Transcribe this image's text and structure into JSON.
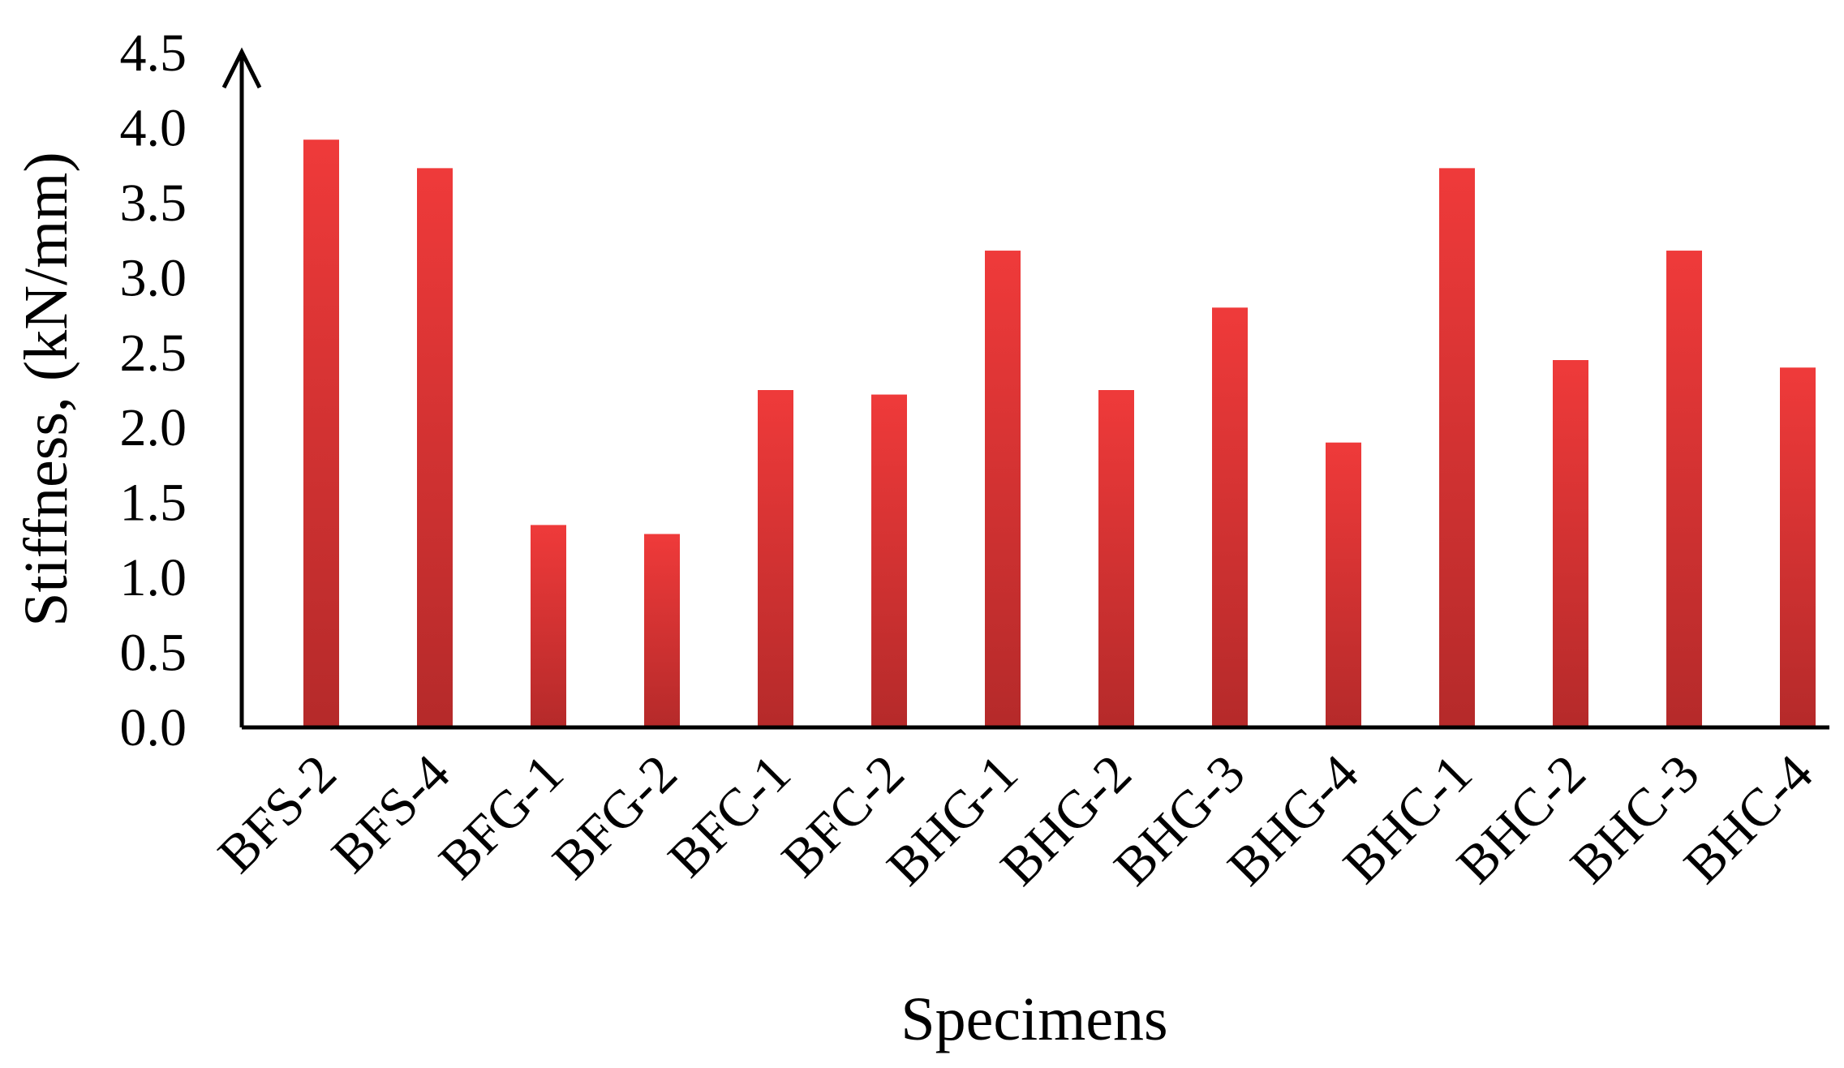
{
  "chart_data": {
    "type": "bar",
    "title": "",
    "xlabel": "Specimens",
    "ylabel": "Stiffness,  (kN/mm)",
    "categories": [
      "BFS-2",
      "BFS-4",
      "BFG-1",
      "BFG-2",
      "BFC-1",
      "BFC-2",
      "BHG-1",
      "BHG-2",
      "BHG-3",
      "BHG-4",
      "BHC-1",
      "BHC-2",
      "BHC-3",
      "BHC-4"
    ],
    "values": [
      3.92,
      3.73,
      1.35,
      1.29,
      2.25,
      2.22,
      3.18,
      2.25,
      2.8,
      1.9,
      3.73,
      2.45,
      3.18,
      2.4
    ],
    "ylim": [
      0.0,
      4.5
    ],
    "yticks": [
      "0.0",
      "0.5",
      "1.0",
      "1.5",
      "2.0",
      "2.5",
      "3.0",
      "3.5",
      "4.0",
      "4.5"
    ],
    "grid": false,
    "legend": "none",
    "colors": {
      "bar_top": "#ef3a3a",
      "bar_bottom": "#b52a2a",
      "axis": "#000000"
    }
  }
}
